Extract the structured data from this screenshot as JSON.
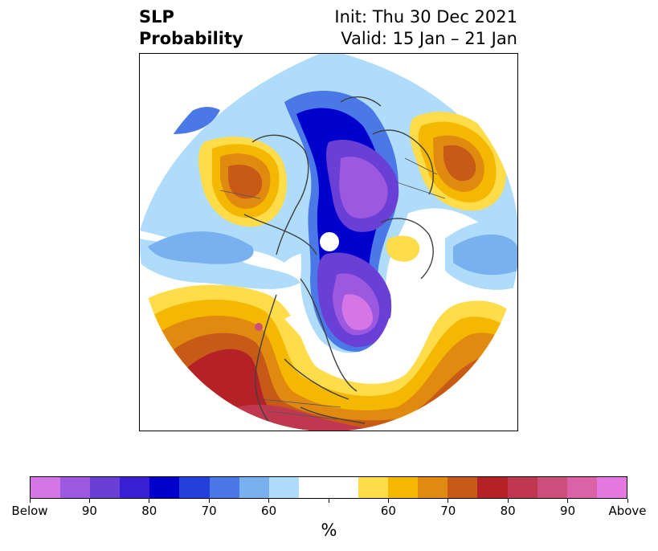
{
  "title": {
    "left_line1": "SLP",
    "left_line2": "Probability",
    "right_line1": "Init: Thu 30 Dec 2021",
    "right_line2": "Valid: 15 Jan – 21 Jan"
  },
  "map": {
    "projection": "north-polar-stereographic",
    "features": [
      "below-normal-arctic-low",
      "below-normal-canada-greenland",
      "above-normal-north-pacific",
      "above-normal-north-atlantic",
      "above-normal-scandinavia-russia",
      "above-normal-eastern-siberia"
    ]
  },
  "colorbar": {
    "colors": [
      "#d576e6",
      "#9c59e0",
      "#6a3fd6",
      "#3a1ed2",
      "#0000cc",
      "#2440dc",
      "#4a78e6",
      "#78b0f0",
      "#aedcfa",
      "#ffffff",
      "#ffffff",
      "#fedc4a",
      "#f5b800",
      "#e08a10",
      "#c85a18",
      "#b42228",
      "#c03850",
      "#cc4e7a",
      "#dc62a8",
      "#e478e0"
    ],
    "labels": [
      "Below",
      "90",
      "80",
      "70",
      "60",
      "",
      "60",
      "70",
      "80",
      "90",
      "Above"
    ],
    "unit": "%"
  }
}
